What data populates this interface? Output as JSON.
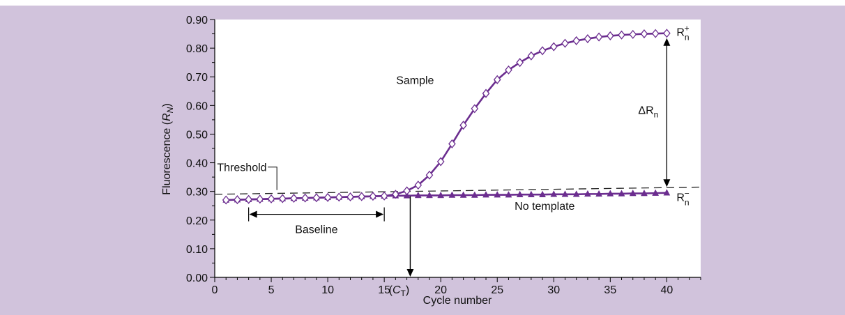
{
  "colors": {
    "background": "#d1c3dc",
    "plot_background": "#ffffff",
    "series_color": "#6b2d8f",
    "axis_color": "#000000"
  },
  "chart_data": {
    "type": "line",
    "xlabel": "Cycle number",
    "ylabel_prefix": "Fluorescence (",
    "ylabel_var": "R",
    "ylabel_sub": "N",
    "ylabel_suffix": ")",
    "xlim": [
      0,
      43
    ],
    "ylim": [
      0,
      0.9
    ],
    "xticks": [
      0,
      5,
      10,
      15,
      20,
      25,
      30,
      35,
      40
    ],
    "xtick_labels": [
      "0",
      "5",
      "10",
      "15",
      "20",
      "25",
      "30",
      "35",
      "40"
    ],
    "yticks": [
      0,
      0.1,
      0.2,
      0.3,
      0.4,
      0.5,
      0.6,
      0.7,
      0.8,
      0.9
    ],
    "ytick_labels": [
      "0.00",
      "0.10",
      "0.20",
      "0.30",
      "0.40",
      "0.50",
      "0.60",
      "0.70",
      "0.80",
      "0.90"
    ],
    "grid": false,
    "series": [
      {
        "name": "Sample",
        "marker": "diamond-open",
        "x": [
          1,
          2,
          3,
          4,
          5,
          6,
          7,
          8,
          9,
          10,
          11,
          12,
          13,
          14,
          15,
          16,
          17,
          18,
          19,
          20,
          21,
          22,
          23,
          24,
          25,
          26,
          27,
          28,
          29,
          30,
          31,
          32,
          33,
          34,
          35,
          36,
          37,
          38,
          39,
          40
        ],
        "values": [
          0.27,
          0.271,
          0.272,
          0.273,
          0.274,
          0.275,
          0.276,
          0.277,
          0.278,
          0.279,
          0.28,
          0.281,
          0.282,
          0.283,
          0.284,
          0.29,
          0.302,
          0.322,
          0.357,
          0.404,
          0.466,
          0.531,
          0.589,
          0.642,
          0.69,
          0.724,
          0.75,
          0.773,
          0.791,
          0.805,
          0.817,
          0.826,
          0.833,
          0.839,
          0.843,
          0.846,
          0.848,
          0.85,
          0.851,
          0.852
        ]
      },
      {
        "name": "No template",
        "marker": "triangle-filled",
        "x": [
          1,
          2,
          3,
          4,
          5,
          6,
          7,
          8,
          9,
          10,
          11,
          12,
          13,
          14,
          15,
          16,
          17,
          18,
          19,
          20,
          21,
          22,
          23,
          24,
          25,
          26,
          27,
          28,
          29,
          30,
          31,
          32,
          33,
          34,
          35,
          36,
          37,
          38,
          39,
          40
        ],
        "values": [
          0.27,
          0.271,
          0.272,
          0.273,
          0.274,
          0.275,
          0.276,
          0.277,
          0.278,
          0.279,
          0.28,
          0.281,
          0.282,
          0.283,
          0.284,
          0.285,
          0.285,
          0.286,
          0.286,
          0.286,
          0.287,
          0.287,
          0.287,
          0.288,
          0.288,
          0.288,
          0.289,
          0.289,
          0.289,
          0.29,
          0.29,
          0.29,
          0.291,
          0.291,
          0.292,
          0.292,
          0.293,
          0.293,
          0.294,
          0.295
        ]
      }
    ],
    "threshold": {
      "label": "Threshold",
      "x": [
        0,
        43
      ],
      "y": [
        0.29,
        0.315
      ]
    },
    "baseline": {
      "label": "Baseline",
      "x_start": 3,
      "x_end": 15,
      "y": 0.22
    },
    "ct": {
      "label_open": "(",
      "label_var": "C",
      "label_sub": "T",
      "label_close": ")",
      "x": 17.3
    },
    "delta": {
      "label": "ΔR",
      "label_sub": "n"
    },
    "rn_plus": {
      "label": "R",
      "sub": "n",
      "sup": "+"
    },
    "rn_minus": {
      "label": "R",
      "sub": "n",
      "sup": "−"
    }
  }
}
